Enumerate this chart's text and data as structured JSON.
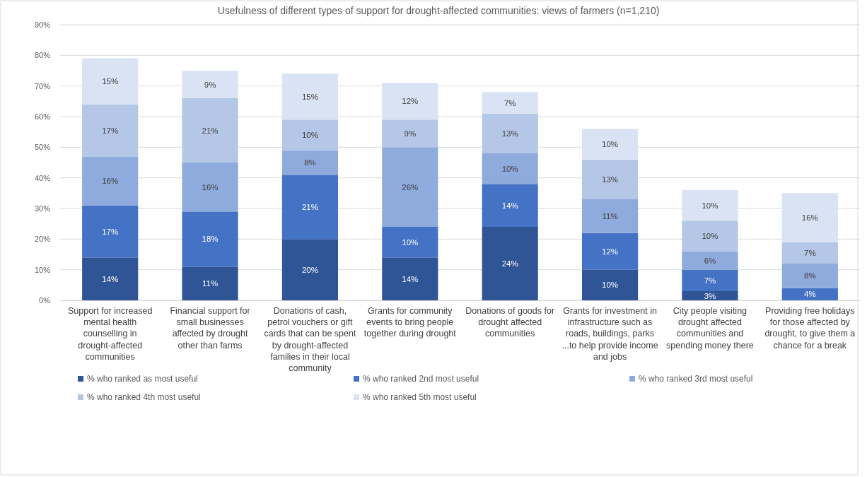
{
  "chart_data": {
    "type": "bar",
    "stacked": true,
    "title": "Usefulness of different types of support for drought-affected communities: views of farmers (n=1,210)",
    "categories": [
      "Support for increased mental health counselling in drought-affected communities",
      "Financial support for small businesses affected by drought other than farms",
      "Donations of cash, petrol vouchers or gift cards that can be spent by drought-affected families in their local community",
      "Grants for community events to bring people together during drought",
      "Donations of goods for drought affected communities",
      "Grants for investment in infrastructure such as roads, buildings, parks ...to help provide income and jobs",
      "City people visiting drought affected communities and spending money there",
      "Providing free holidays for those affected by drought, to give them a chance for a break"
    ],
    "series": [
      {
        "name": "% who ranked as most useful",
        "color": "#2f5597",
        "values": [
          14,
          11,
          20,
          14,
          24,
          10,
          3,
          0
        ],
        "value_labels": [
          "14%",
          "11%",
          "20%",
          "14%",
          "24%",
          "10%",
          "3%",
          null
        ]
      },
      {
        "name": "% who ranked 2nd most useful",
        "color": "#4472c4",
        "values": [
          17,
          18,
          21,
          10,
          14,
          12,
          7,
          4
        ],
        "value_labels": [
          "17%",
          "18%",
          "21%",
          "10%",
          "14%",
          "12%",
          "7%",
          "4%"
        ]
      },
      {
        "name": "% who ranked 3rd most useful",
        "color": "#8faadc",
        "values": [
          16,
          16,
          8,
          26,
          10,
          11,
          6,
          8
        ],
        "value_labels": [
          "16%",
          "16%",
          "8%",
          "26%",
          "10%",
          "11%",
          "6%",
          "8%"
        ]
      },
      {
        "name": "% who ranked 4th most useful",
        "color": "#b4c7e7",
        "values": [
          17,
          21,
          10,
          9,
          13,
          13,
          10,
          7
        ],
        "value_labels": [
          "17%",
          "21%",
          "10%",
          "9%",
          "13%",
          "13%",
          "10%",
          "7%"
        ]
      },
      {
        "name": "% who ranked 5th most useful",
        "color": "#dae3f3",
        "values": [
          15,
          9,
          15,
          12,
          7,
          10,
          10,
          16
        ],
        "value_labels": [
          "15%",
          "9%",
          "15%",
          "12%",
          "7%",
          "10%",
          "10%",
          "16%"
        ]
      }
    ],
    "ylim": [
      0,
      90
    ],
    "yticks": [
      {
        "value": 0,
        "label": "0%"
      },
      {
        "value": 10,
        "label": "10%"
      },
      {
        "value": 20,
        "label": "20%"
      },
      {
        "value": 30,
        "label": "30%"
      },
      {
        "value": 40,
        "label": "40%"
      },
      {
        "value": 50,
        "label": "50%"
      },
      {
        "value": 60,
        "label": "60%"
      },
      {
        "value": 70,
        "label": "70%"
      },
      {
        "value": 80,
        "label": "80%"
      },
      {
        "value": 90,
        "label": "90%"
      }
    ],
    "grid": "y",
    "legend": "bottom"
  }
}
